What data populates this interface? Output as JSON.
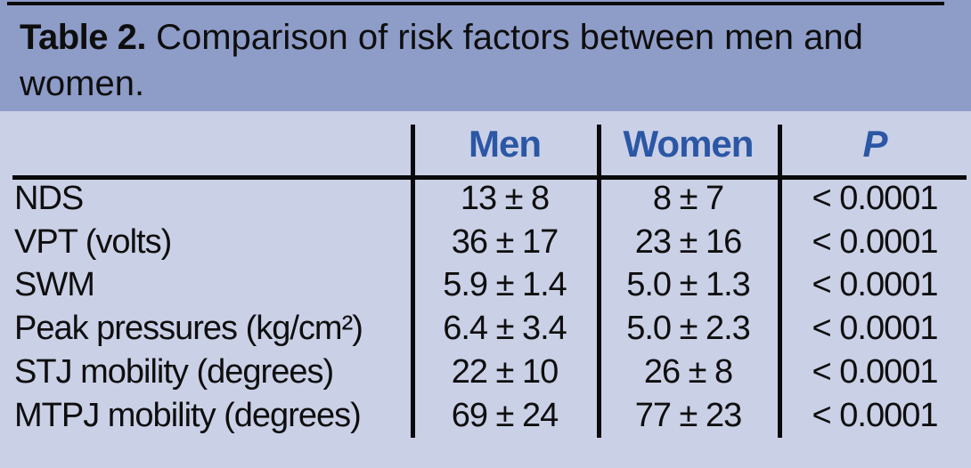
{
  "title": {
    "label": "Table 2.",
    "text": " Comparison of risk factors between men and women."
  },
  "table": {
    "header": {
      "men": "Men",
      "women": "Women",
      "p": "P"
    },
    "rows": [
      {
        "label": "NDS",
        "men": "13 ± 8",
        "women": "8 ± 7",
        "p": "< 0.0001"
      },
      {
        "label": "VPT (volts)",
        "men": "36 ± 17",
        "women": "23 ± 16",
        "p": "< 0.0001"
      },
      {
        "label": "SWM",
        "men": "5.9 ± 1.4",
        "women": "5.0 ± 1.3",
        "p": "< 0.0001"
      },
      {
        "label": "Peak pressures (kg/cm²)",
        "men": "6.4 ± 3.4",
        "women": "5.0 ± 2.3",
        "p": "< 0.0001"
      },
      {
        "label": "STJ mobility (degrees)",
        "men": "22 ± 10",
        "women": "26 ± 8",
        "p": "< 0.0001"
      },
      {
        "label": "MTPJ mobility (degrees)",
        "men": "69 ± 24",
        "women": "77 ± 23",
        "p": "< 0.0001"
      }
    ]
  },
  "colors": {
    "title_band_bg": "#8e9cc8",
    "table_bg": "#cad0e6",
    "header_text": "#2b57a5",
    "rule_black": "#0a0a0a",
    "body_text": "#0e0e0e"
  }
}
